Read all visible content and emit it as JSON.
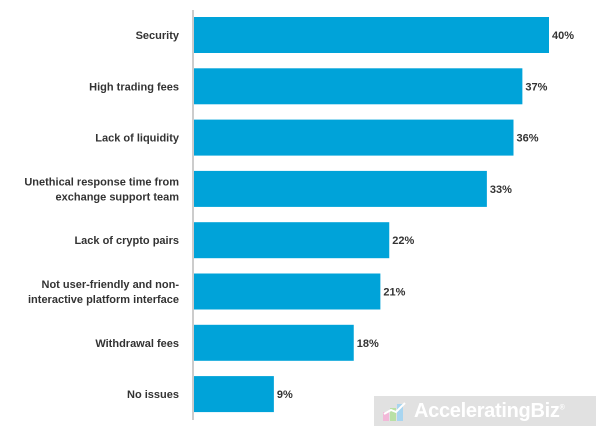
{
  "chart_data": {
    "type": "bar",
    "orientation": "horizontal",
    "categories": [
      [
        "Security"
      ],
      [
        "High trading fees"
      ],
      [
        "Lack of liquidity"
      ],
      [
        "Unethical response time from",
        "exchange support team"
      ],
      [
        "Lack of crypto pairs"
      ],
      [
        "Not user-friendly and non-",
        "interactive platform interface"
      ],
      [
        "Withdrawal fees"
      ],
      [
        "No issues"
      ]
    ],
    "values": [
      40,
      37,
      36,
      33,
      22,
      21,
      18,
      9
    ],
    "value_labels": [
      "40%",
      "37%",
      "36%",
      "33%",
      "22%",
      "21%",
      "18%",
      "9%"
    ],
    "xlim": [
      0,
      40
    ],
    "bar_color": "#00a3d9",
    "grid": false,
    "legend": "none"
  },
  "watermark": {
    "text": "AcceleratingBiz",
    "mark": "®"
  }
}
